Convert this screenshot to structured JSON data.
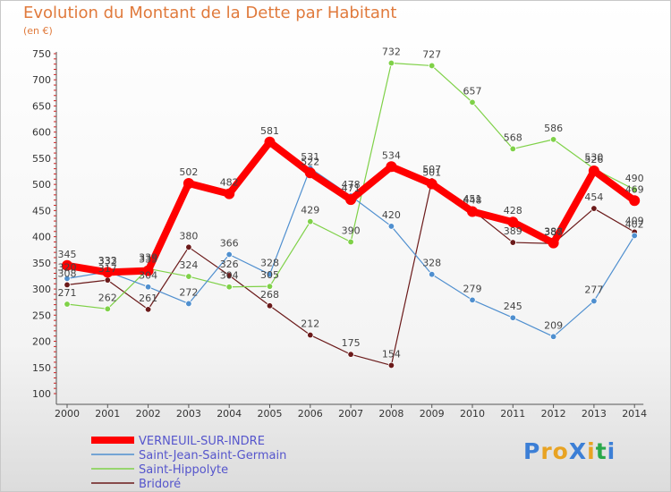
{
  "title": "Evolution du Montant de la Dette par Habitant",
  "subtitle": "(en €)",
  "logo": {
    "text": "ProXiti",
    "letter_colors": [
      "#3c7fd6",
      "#e8a323",
      "#e8a323",
      "#3c7fd6",
      "#e8a323",
      "#2aa84a"
    ]
  },
  "chart_data": {
    "type": "line",
    "title": "Evolution du Montant de la Dette par Habitant",
    "subtitle": "(en €)",
    "x": [
      "2000",
      "2001",
      "2002",
      "2003",
      "2004",
      "2005",
      "2006",
      "2007",
      "2008",
      "2009",
      "2010",
      "2011",
      "2012",
      "2013",
      "2014"
    ],
    "ylim": [
      100,
      750
    ],
    "yticks": [
      100,
      150,
      200,
      250,
      300,
      350,
      400,
      450,
      500,
      550,
      600,
      650,
      700,
      750
    ],
    "grid": false,
    "legend_position": "bottom-left",
    "series": [
      {
        "name": "VERNEUIL-SUR-INDRE",
        "color": "#ff0000",
        "values": [
          345,
          332,
          335,
          502,
          482,
          581,
          522,
          471,
          534,
          501,
          448,
          428,
          388,
          526,
          469
        ]
      },
      {
        "name": "Saint-Jean-Saint-Germain",
        "color": "#4f8fcf",
        "values": [
          320,
          333,
          304,
          272,
          366,
          328,
          531,
          478,
          420,
          328,
          279,
          245,
          209,
          277,
          402
        ]
      },
      {
        "name": "Saint-Hippolyte",
        "color": "#7fd148",
        "values": [
          271,
          262,
          339,
          324,
          304,
          305,
          429,
          390,
          732,
          727,
          657,
          568,
          586,
          530,
          490
        ]
      },
      {
        "name": "Bridoré",
        "color": "#6b1a1a",
        "values": [
          308,
          317,
          261,
          380,
          326,
          268,
          212,
          175,
          154,
          507,
          451,
          389,
          387,
          454,
          409
        ]
      }
    ]
  }
}
